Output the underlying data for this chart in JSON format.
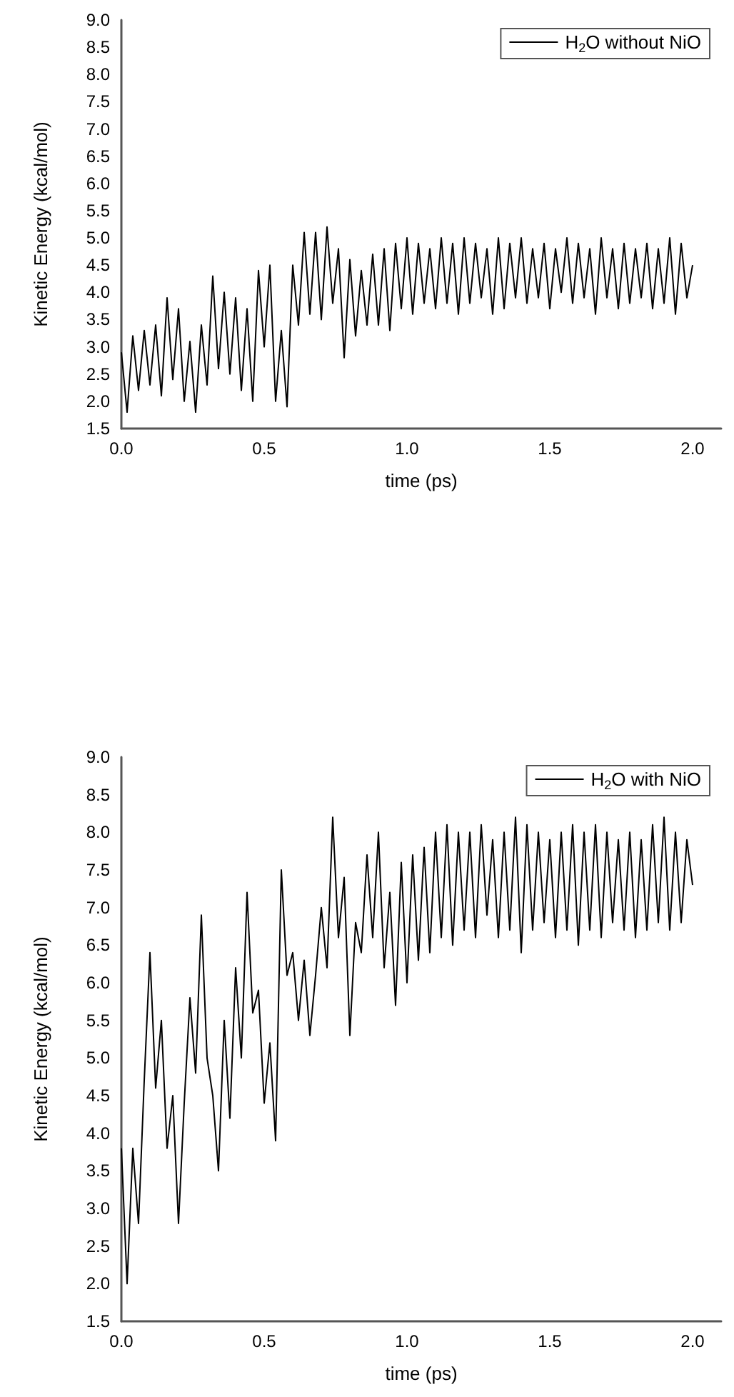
{
  "chart_data": [
    {
      "type": "line",
      "xlabel": "time (ps)",
      "ylabel": "Kinetic Energy (kcal/mol)",
      "legend": "top right",
      "grid": false,
      "marker": "none",
      "line_style": "solid",
      "xlim": [
        0,
        2.1
      ],
      "xticks": [
        {
          "value": 0,
          "label": "0.0"
        },
        {
          "value": 0.5,
          "label": "0.5"
        },
        {
          "value": 1,
          "label": "1.0"
        },
        {
          "value": 1.5,
          "label": "1.5"
        },
        {
          "value": 2,
          "label": "2.0"
        }
      ],
      "ylim": [
        1.5,
        9
      ],
      "yticks": [
        {
          "value": 1.5,
          "label": "1.5"
        },
        {
          "value": 2,
          "label": "2.0"
        },
        {
          "value": 2.5,
          "label": "2.5"
        },
        {
          "value": 3,
          "label": "3.0"
        },
        {
          "value": 3.5,
          "label": "3.5"
        },
        {
          "value": 4,
          "label": "4.0"
        },
        {
          "value": 4.5,
          "label": "4.5"
        },
        {
          "value": 5,
          "label": "5.0"
        },
        {
          "value": 5.5,
          "label": "5.5"
        },
        {
          "value": 6,
          "label": "6.0"
        },
        {
          "value": 6.5,
          "label": "6.5"
        },
        {
          "value": 7,
          "label": "7.0"
        },
        {
          "value": 7.5,
          "label": "7.5"
        },
        {
          "value": 8,
          "label": "8.0"
        },
        {
          "value": 8.5,
          "label": "8.5"
        },
        {
          "value": 9,
          "label": "9.0"
        }
      ],
      "x": [
        0,
        0.02,
        0.04,
        0.06,
        0.08,
        0.1,
        0.12,
        0.14,
        0.16,
        0.18,
        0.2,
        0.22,
        0.24,
        0.26,
        0.28,
        0.3,
        0.32,
        0.34,
        0.36,
        0.38,
        0.4,
        0.42,
        0.44,
        0.46,
        0.48,
        0.5,
        0.52,
        0.54,
        0.56,
        0.58,
        0.6,
        0.62,
        0.64,
        0.66,
        0.68,
        0.7,
        0.72,
        0.74,
        0.76,
        0.78,
        0.8,
        0.82,
        0.84,
        0.86,
        0.88,
        0.9,
        0.92,
        0.94,
        0.96,
        0.98,
        1,
        1.02,
        1.04,
        1.06,
        1.08,
        1.1,
        1.12,
        1.14,
        1.16,
        1.18,
        1.2,
        1.22,
        1.24,
        1.26,
        1.28,
        1.3,
        1.32,
        1.34,
        1.36,
        1.38,
        1.4,
        1.42,
        1.44,
        1.46,
        1.48,
        1.5,
        1.52,
        1.54,
        1.56,
        1.58,
        1.6,
        1.62,
        1.64,
        1.66,
        1.68,
        1.7,
        1.72,
        1.74,
        1.76,
        1.78,
        1.8,
        1.82,
        1.84,
        1.86,
        1.88,
        1.9,
        1.92,
        1.94,
        1.96,
        1.98,
        2
      ],
      "series": [
        {
          "name": "H$_{2}$O without NiO",
          "color": "#000000",
          "values": [
            2.9,
            1.8,
            3.2,
            2.2,
            3.3,
            2.3,
            3.4,
            2.1,
            3.9,
            2.4,
            3.7,
            2.0,
            3.1,
            1.8,
            3.4,
            2.3,
            4.3,
            2.6,
            4.0,
            2.5,
            3.9,
            2.2,
            3.7,
            2.0,
            4.4,
            3.0,
            4.5,
            2.0,
            3.3,
            1.9,
            4.5,
            3.4,
            5.1,
            3.6,
            5.1,
            3.5,
            5.2,
            3.8,
            4.8,
            2.8,
            4.6,
            3.2,
            4.4,
            3.4,
            4.7,
            3.4,
            4.8,
            3.3,
            4.9,
            3.7,
            5.0,
            3.6,
            4.9,
            3.8,
            4.8,
            3.7,
            5.0,
            3.8,
            4.9,
            3.6,
            5.0,
            3.8,
            4.9,
            3.9,
            4.8,
            3.6,
            5.0,
            3.7,
            4.9,
            3.9,
            5.0,
            3.8,
            4.8,
            3.9,
            4.9,
            3.7,
            4.8,
            4.0,
            5.0,
            3.8,
            4.9,
            3.9,
            4.8,
            3.6,
            5.0,
            3.9,
            4.8,
            3.7,
            4.9,
            3.8,
            4.8,
            3.9,
            4.9,
            3.7,
            4.8,
            3.8,
            5.0,
            3.6,
            4.9,
            3.9,
            4.5
          ]
        }
      ]
    },
    {
      "type": "line",
      "xlabel": "time (ps)",
      "ylabel": "Kinetic Energy (kcal/mol)",
      "legend": "top right",
      "grid": false,
      "marker": "none",
      "line_style": "solid",
      "xlim": [
        0,
        2.1
      ],
      "xticks": [
        {
          "value": 0,
          "label": "0.0"
        },
        {
          "value": 0.5,
          "label": "0.5"
        },
        {
          "value": 1,
          "label": "1.0"
        },
        {
          "value": 1.5,
          "label": "1.5"
        },
        {
          "value": 2,
          "label": "2.0"
        }
      ],
      "ylim": [
        1.5,
        9
      ],
      "yticks": [
        {
          "value": 1.5,
          "label": "1.5"
        },
        {
          "value": 2,
          "label": "2.0"
        },
        {
          "value": 2.5,
          "label": "2.5"
        },
        {
          "value": 3,
          "label": "3.0"
        },
        {
          "value": 3.5,
          "label": "3.5"
        },
        {
          "value": 4,
          "label": "4.0"
        },
        {
          "value": 4.5,
          "label": "4.5"
        },
        {
          "value": 5,
          "label": "5.0"
        },
        {
          "value": 5.5,
          "label": "5.5"
        },
        {
          "value": 6,
          "label": "6.0"
        },
        {
          "value": 6.5,
          "label": "6.5"
        },
        {
          "value": 7,
          "label": "7.0"
        },
        {
          "value": 7.5,
          "label": "7.5"
        },
        {
          "value": 8,
          "label": "8.0"
        },
        {
          "value": 8.5,
          "label": "8.5"
        },
        {
          "value": 9,
          "label": "9.0"
        }
      ],
      "x": [
        0,
        0.02,
        0.04,
        0.06,
        0.08,
        0.1,
        0.12,
        0.14,
        0.16,
        0.18,
        0.2,
        0.22,
        0.24,
        0.26,
        0.28,
        0.3,
        0.32,
        0.34,
        0.36,
        0.38,
        0.4,
        0.42,
        0.44,
        0.46,
        0.48,
        0.5,
        0.52,
        0.54,
        0.56,
        0.58,
        0.6,
        0.62,
        0.64,
        0.66,
        0.68,
        0.7,
        0.72,
        0.74,
        0.76,
        0.78,
        0.8,
        0.82,
        0.84,
        0.86,
        0.88,
        0.9,
        0.92,
        0.94,
        0.96,
        0.98,
        1,
        1.02,
        1.04,
        1.06,
        1.08,
        1.1,
        1.12,
        1.14,
        1.16,
        1.18,
        1.2,
        1.22,
        1.24,
        1.26,
        1.28,
        1.3,
        1.32,
        1.34,
        1.36,
        1.38,
        1.4,
        1.42,
        1.44,
        1.46,
        1.48,
        1.5,
        1.52,
        1.54,
        1.56,
        1.58,
        1.6,
        1.62,
        1.64,
        1.66,
        1.68,
        1.7,
        1.72,
        1.74,
        1.76,
        1.78,
        1.8,
        1.82,
        1.84,
        1.86,
        1.88,
        1.9,
        1.92,
        1.94,
        1.96,
        1.98,
        2
      ],
      "series": [
        {
          "name": "H$_{2}$O with NiO",
          "color": "#000000",
          "values": [
            3.8,
            2.0,
            3.8,
            2.8,
            4.7,
            6.4,
            4.6,
            5.5,
            3.8,
            4.5,
            2.8,
            4.4,
            5.8,
            4.8,
            6.9,
            5.0,
            4.5,
            3.5,
            5.5,
            4.2,
            6.2,
            5.0,
            7.2,
            5.6,
            5.9,
            4.4,
            5.2,
            3.9,
            7.5,
            6.1,
            6.4,
            5.5,
            6.3,
            5.3,
            6.1,
            7.0,
            6.2,
            8.2,
            6.6,
            7.4,
            5.3,
            6.8,
            6.4,
            7.7,
            6.6,
            8.0,
            6.2,
            7.2,
            5.7,
            7.6,
            6.0,
            7.7,
            6.3,
            7.8,
            6.4,
            8.0,
            6.6,
            8.1,
            6.5,
            8.0,
            6.7,
            8.0,
            6.6,
            8.1,
            6.9,
            7.9,
            6.6,
            8.0,
            6.7,
            8.2,
            6.4,
            8.1,
            6.7,
            8.0,
            6.8,
            7.9,
            6.6,
            8.0,
            6.7,
            8.1,
            6.5,
            8.0,
            6.7,
            8.1,
            6.6,
            8.0,
            6.8,
            7.9,
            6.7,
            8.0,
            6.6,
            7.9,
            6.7,
            8.1,
            6.8,
            8.2,
            6.7,
            8.0,
            6.8,
            7.9,
            7.3
          ]
        }
      ]
    }
  ]
}
